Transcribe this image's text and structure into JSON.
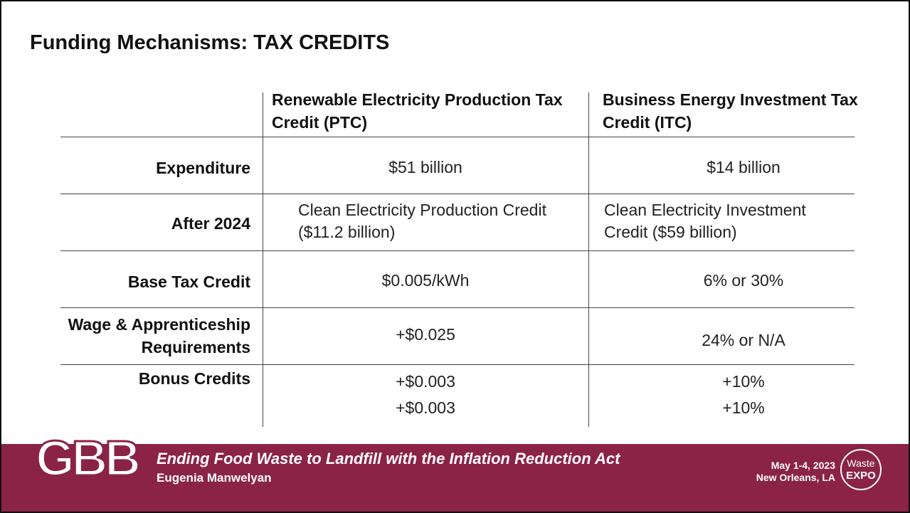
{
  "title": "Funding Mechanisms: TAX CREDITS",
  "table": {
    "headers": [
      "Renewable Electricity Production Tax Credit (PTC)",
      "Business Energy Investment Tax Credit (ITC)"
    ],
    "rows": [
      [
        "Expenditure",
        "$51 billion",
        "$14 billion"
      ],
      [
        "After 2024",
        "Clean Electricity Production Credit ($11.2 billion)",
        "Clean Electricity Investment Credit ($59 billion)"
      ],
      [
        "Base Tax Credit",
        "$0.005/kWh",
        "6% or 30%"
      ],
      [
        "Wage & Apprenticeship Requirements",
        "+$0.025",
        "24% or N/A"
      ],
      [
        "Bonus Credits",
        [
          "+$0.003",
          "+$0.003"
        ],
        [
          "+10%",
          "+10%"
        ]
      ]
    ]
  },
  "footer": {
    "logo": "GBB",
    "talk_title": "Ending Food Waste to Landfill with the Inflation Reduction Act",
    "speaker": "Eugenia Manwelyan",
    "date": "May 1-4, 2023",
    "location": "New Orleans, LA",
    "event_logo": [
      "Waste",
      "EXPO"
    ]
  }
}
